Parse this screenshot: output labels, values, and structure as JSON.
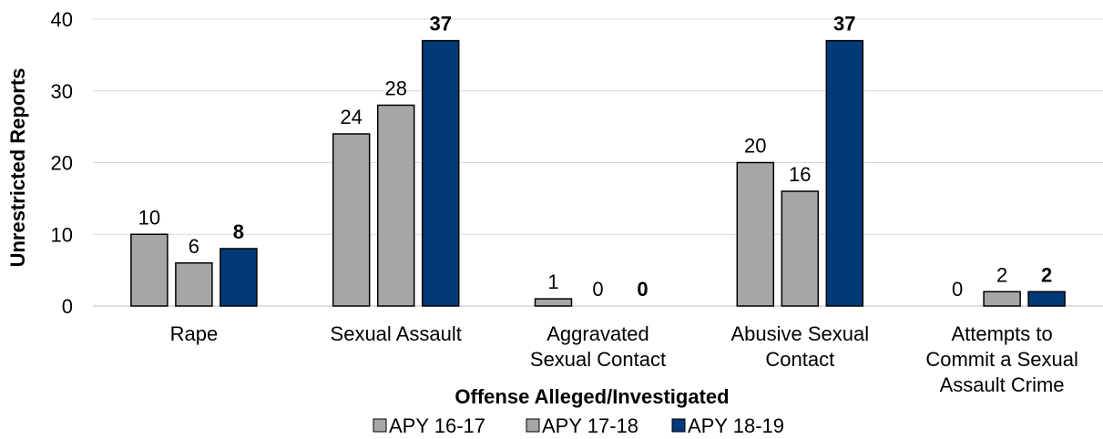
{
  "chart_data": {
    "type": "bar",
    "xlabel": "Offense Alleged/Investigated",
    "ylabel": "Unrestricted Reports",
    "ylim": [
      0,
      40
    ],
    "yticks": [
      0,
      10,
      20,
      30,
      40
    ],
    "grid": true,
    "legend_position": "bottom",
    "categories": [
      [
        "Rape"
      ],
      [
        "Sexual Assault"
      ],
      [
        "Aggravated",
        "Sexual Contact"
      ],
      [
        "Abusive Sexual",
        "Contact"
      ],
      [
        "Attempts to",
        "Commit a Sexual",
        "Assault Crime"
      ]
    ],
    "series": [
      {
        "name": "APY 16-17",
        "values": [
          10,
          24,
          1,
          20,
          0
        ],
        "color": "#a6a6a6",
        "bold_labels": false
      },
      {
        "name": "APY 17-18",
        "values": [
          6,
          28,
          0,
          16,
          2
        ],
        "color": "#a6a6a6",
        "bold_labels": false
      },
      {
        "name": "APY 18-19",
        "values": [
          8,
          37,
          0,
          37,
          2
        ],
        "color": "#003a78",
        "bold_labels": true
      }
    ]
  }
}
